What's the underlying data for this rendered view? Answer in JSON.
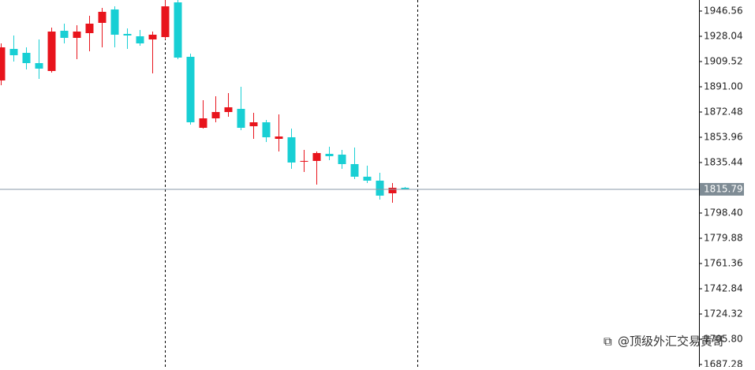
{
  "chart_data": {
    "type": "candlestick",
    "ohlc": [
      [
        1895.63,
        1922.83,
        1892.16,
        1919.94
      ],
      [
        1918.78,
        1928.62,
        1909.52,
        1914.15
      ],
      [
        1915.89,
        1919.94,
        1903.73,
        1908.36
      ],
      [
        1908.36,
        1925.72,
        1896.79,
        1904.31
      ],
      [
        1902.58,
        1934.41,
        1901.42,
        1931.51
      ],
      [
        1932.09,
        1937.3,
        1922.83,
        1926.88
      ],
      [
        1926.88,
        1936.14,
        1911.26,
        1931.51
      ],
      [
        1930.35,
        1943.09,
        1917.04,
        1937.3
      ],
      [
        1937.88,
        1948.87,
        1919.94,
        1945.98
      ],
      [
        1947.72,
        1950.03,
        1919.94,
        1929.2
      ],
      [
        1929.78,
        1933.83,
        1918.78,
        1928.62
      ],
      [
        1928.04,
        1932.67,
        1921.1,
        1922.83
      ],
      [
        1925.72,
        1931.51,
        1900.84,
        1929.2
      ],
      [
        1927.46,
        1954.66,
        1925.72,
        1950.03
      ],
      [
        1952.92,
        1954.66,
        1911.26,
        1912.41
      ],
      [
        1912.99,
        1915.31,
        1863.23,
        1864.96
      ],
      [
        1860.91,
        1881.17,
        1860.33,
        1867.85
      ],
      [
        1867.85,
        1884.06,
        1864.96,
        1872.48
      ],
      [
        1872.48,
        1886.37,
        1869.01,
        1875.96
      ],
      [
        1874.8,
        1891.0,
        1859.17,
        1860.91
      ],
      [
        1862.07,
        1871.91,
        1852.81,
        1864.96
      ],
      [
        1864.96,
        1866.7,
        1850.49,
        1853.97
      ],
      [
        1852.81,
        1870.75,
        1843.55,
        1854.54
      ],
      [
        1853.97,
        1860.33,
        1830.82,
        1835.45
      ],
      [
        1836.03,
        1844.71,
        1828.5,
        1836.61
      ],
      [
        1836.61,
        1843.55,
        1819.24,
        1842.39
      ],
      [
        1841.81,
        1847.02,
        1837.18,
        1840.08
      ],
      [
        1841.23,
        1844.71,
        1830.82,
        1834.29
      ],
      [
        1834.29,
        1846.44,
        1823.3,
        1825.03
      ],
      [
        1825.03,
        1833.13,
        1820.4,
        1822.14
      ],
      [
        1822.14,
        1827.92,
        1808.25,
        1811.14
      ],
      [
        1812.88,
        1820.4,
        1805.93,
        1816.93
      ],
      [
        1816.93,
        1817.51,
        1815.79,
        1815.79
      ]
    ],
    "up_color": "#e8141c",
    "down_color": "#18cfd4",
    "current_price": 1815.79,
    "ylim": [
      1685.56,
      1954.66
    ],
    "yticks": [
      1946.56,
      1928.04,
      1909.52,
      {
        "value": 1891.0,
        "label": "1891.00"
      },
      1872.48,
      1853.96,
      1835.44,
      {
        "value": 1798.4,
        "label": "1798.40"
      },
      1779.88,
      1761.36,
      1742.84,
      1724.32,
      {
        "value": 1705.8,
        "label": "1705.80"
      },
      1687.28
    ],
    "watermark": "@顶级外汇交易黄哥"
  }
}
